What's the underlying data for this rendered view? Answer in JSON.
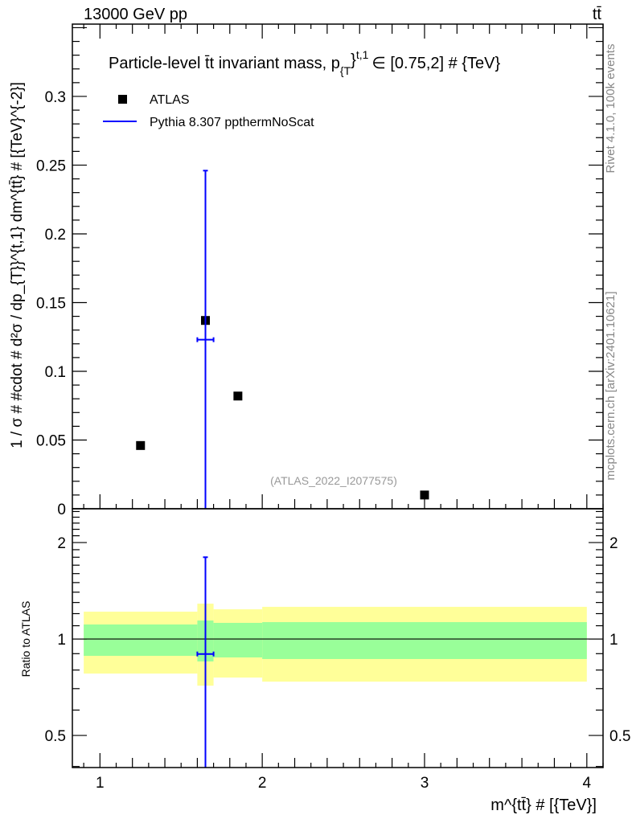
{
  "header": {
    "energy_label": "13000 GeV pp",
    "process_label": "tt̄"
  },
  "side_labels": {
    "rivet": "Rivet 4.1.0,  100k events",
    "mcplots": "mcplots.cern.ch [arXiv:2401.10621]"
  },
  "watermark": "(ATLAS_2022_I2077575)",
  "colors": {
    "data": "#000000",
    "mc": "#0000ff",
    "band_inner": "#99ff99",
    "band_outer": "#ffff99"
  },
  "chart_data": [
    {
      "type": "scatter",
      "panel": "main",
      "title_parts": [
        "Particle-level t̄t invariant mass, p",
        "{T",
        "}",
        "t,1",
        "∈ [0.75,2] # {TeV}"
      ],
      "ylabel": "1 / σ # #cdot # d²σ / dp_{T}}^{t,1} dm^{tt̄} # [{TeV}^{-2}]",
      "xlim": [
        0.83,
        4.1
      ],
      "ylim": [
        0,
        0.3526
      ],
      "yticks": [
        "0",
        "0.05",
        "0.1",
        "0.15",
        "0.2",
        "0.25",
        "0.3"
      ],
      "legend": {
        "placement": "top-left",
        "entries": [
          "ATLAS",
          "Pythia 8.307 ppthermNoScat"
        ]
      },
      "series": [
        {
          "name": "ATLAS",
          "style": "marker",
          "points": [
            {
              "x": 1.25,
              "xlo": 0.9,
              "xhi": 1.6,
              "y": 0.046
            },
            {
              "x": 1.65,
              "xlo": 1.6,
              "xhi": 1.7,
              "y": 0.137
            },
            {
              "x": 1.85,
              "xlo": 1.7,
              "xhi": 2.0,
              "y": 0.082
            },
            {
              "x": 3.0,
              "xlo": 2.0,
              "xhi": 4.0,
              "y": 0.01
            }
          ]
        },
        {
          "name": "Pythia 8.307 ppthermNoScat",
          "style": "errorbar",
          "points": [
            {
              "x": 1.65,
              "xlo": 1.6,
              "xhi": 1.7,
              "y": 0.123,
              "ylo": 0.0,
              "yhi": 0.246
            }
          ]
        }
      ]
    },
    {
      "type": "line",
      "panel": "ratio",
      "ylabel": "Ratio to ATLAS",
      "xlabel": "m^{tt̄} # [{TeV}]",
      "xticks": [
        "1",
        "2",
        "3",
        "4"
      ],
      "yticks": [
        "0.5",
        "1",
        "2"
      ],
      "yscale": "log",
      "ylim": [
        0.397,
        2.55
      ],
      "bands": [
        {
          "xlo": 0.9,
          "xhi": 1.6,
          "inner": [
            0.886,
            1.11
          ],
          "outer": [
            0.78,
            1.217
          ]
        },
        {
          "xlo": 1.6,
          "xhi": 1.7,
          "inner": [
            0.851,
            1.142
          ],
          "outer": [
            0.715,
            1.289
          ]
        },
        {
          "xlo": 1.7,
          "xhi": 2.0,
          "inner": [
            0.876,
            1.123
          ],
          "outer": [
            0.758,
            1.238
          ]
        },
        {
          "xlo": 2.0,
          "xhi": 4.0,
          "inner": [
            0.866,
            1.129
          ],
          "outer": [
            0.736,
            1.26
          ]
        }
      ],
      "series": [
        {
          "name": "Pythia 8.307 ppthermNoScat",
          "points": [
            {
              "x": 1.65,
              "xlo": 1.6,
              "xhi": 1.7,
              "y": 0.898,
              "ylo": 0.0,
              "yhi": 1.8
            }
          ]
        }
      ]
    }
  ]
}
